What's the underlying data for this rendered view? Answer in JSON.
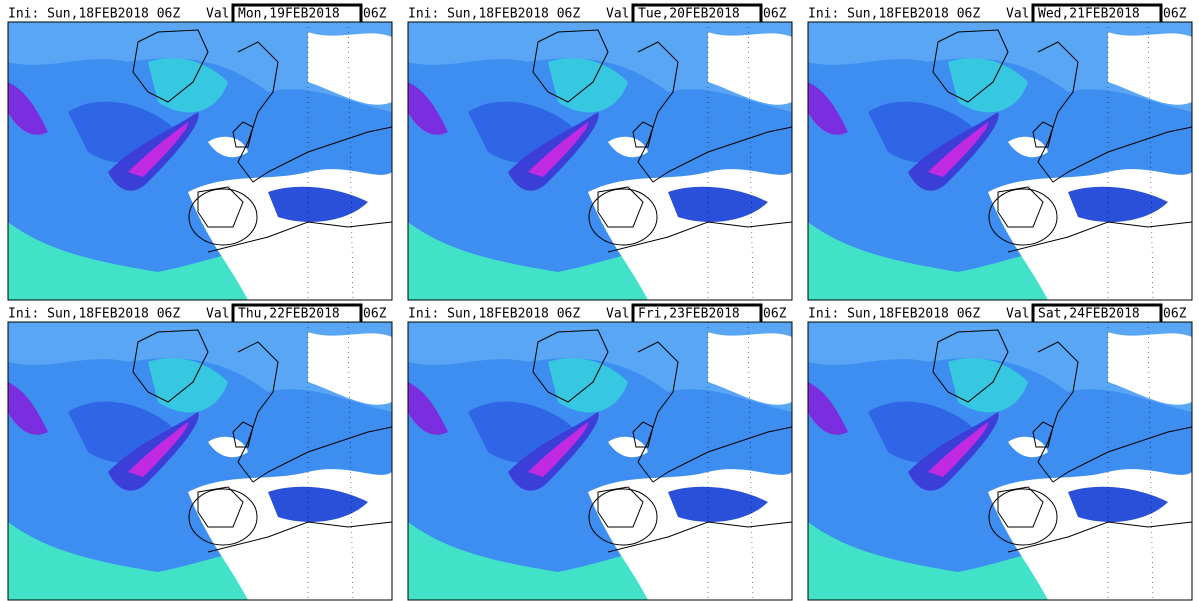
{
  "panels": [
    {
      "ini": "Ini: Sun,18FEB2018 06Z",
      "val": "Val:",
      "valid": "Mon,19FEB2018",
      "time": "06Z"
    },
    {
      "ini": "Ini: Sun,18FEB2018 06Z",
      "val": "Val:",
      "valid": "Tue,20FEB2018",
      "time": "06Z"
    },
    {
      "ini": "Ini: Sun,18FEB2018 06Z",
      "val": "Val:",
      "valid": "Wed,21FEB2018",
      "time": "06Z"
    },
    {
      "ini": "Ini: Sun,18FEB2018 06Z",
      "val": "Val:",
      "valid": "Thu,22FEB2018",
      "time": "06Z"
    },
    {
      "ini": "Ini: Sun,18FEB2018 06Z",
      "val": "Val:",
      "valid": "Fri,23FEB2018",
      "time": "06Z"
    },
    {
      "ini": "Ini: Sun,18FEB2018 06Z",
      "val": "Val:",
      "valid": "Sat,24FEB2018",
      "time": "06Z"
    }
  ]
}
